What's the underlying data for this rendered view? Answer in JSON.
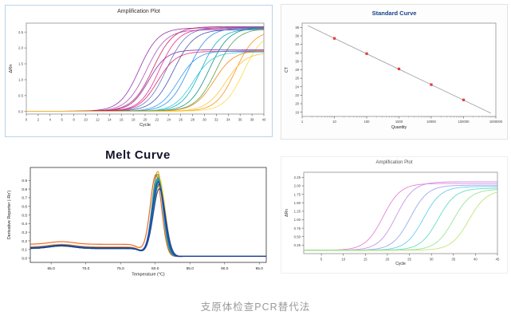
{
  "caption": "支原体检查PCR替代法",
  "chart_data": [
    {
      "id": "amp-main",
      "type": "line",
      "curve_model": "sigmoid",
      "title": "Amplification Plot",
      "xlabel": "Cycle",
      "ylabel": "ΔRn",
      "xlim": [
        0,
        40
      ],
      "ylim": [
        -0.08,
        2.78
      ],
      "grid": false,
      "legend": "none",
      "xticks": [
        0,
        2,
        4,
        6,
        8,
        10,
        12,
        14,
        16,
        18,
        20,
        22,
        24,
        26,
        28,
        30,
        32,
        34,
        36,
        38,
        40
      ],
      "yticks": [
        0.0,
        0.5,
        1.0,
        1.5,
        2.0,
        2.5
      ],
      "ytick_labels": [
        "0.0",
        "0.5",
        "1.0",
        "1.5",
        "2.0",
        "2.5"
      ],
      "series": [
        {
          "color": "#8e24aa",
          "plateau": 2.62,
          "ct": 19.0,
          "slope": 0.62,
          "baseline": 0.01
        },
        {
          "color": "#ab47bc",
          "plateau": 2.56,
          "ct": 20.2,
          "slope": 0.6,
          "baseline": 0.01
        },
        {
          "color": "#c2185b",
          "plateau": 2.66,
          "ct": 21.3,
          "slope": 0.58,
          "baseline": 0.01
        },
        {
          "color": "#e91e8c",
          "plateau": 2.6,
          "ct": 22.4,
          "slope": 0.62,
          "baseline": 0.01
        },
        {
          "color": "#5c6bc0",
          "plateau": 2.64,
          "ct": 23.6,
          "slope": 0.6,
          "baseline": 0.01
        },
        {
          "color": "#3949ab",
          "plateau": 2.57,
          "ct": 24.8,
          "slope": 0.58,
          "baseline": 0.01
        },
        {
          "color": "#1e88e5",
          "plateau": 2.62,
          "ct": 27.3,
          "slope": 0.6,
          "baseline": 0.01
        },
        {
          "color": "#00acc1",
          "plateau": 2.58,
          "ct": 29.4,
          "slope": 0.62,
          "baseline": 0.01
        },
        {
          "color": "#00897b",
          "plateau": 2.63,
          "ct": 30.8,
          "slope": 0.6,
          "baseline": 0.01
        },
        {
          "color": "#43a047",
          "plateau": 2.6,
          "ct": 32.0,
          "slope": 0.58,
          "baseline": 0.01
        },
        {
          "color": "#fb8c00",
          "plateau": 2.54,
          "ct": 35.2,
          "slope": 0.62,
          "baseline": 0.01
        },
        {
          "color": "#fdd835",
          "plateau": 2.5,
          "ct": 36.6,
          "slope": 0.62,
          "baseline": 0.01
        },
        {
          "color": "#7b1fa2",
          "plateau": 1.93,
          "ct": 20.6,
          "slope": 0.66,
          "baseline": 0.01
        },
        {
          "color": "#d81b60",
          "plateau": 1.88,
          "ct": 22.1,
          "slope": 0.64,
          "baseline": 0.01
        },
        {
          "color": "#2196f3",
          "plateau": 1.9,
          "ct": 25.6,
          "slope": 0.62,
          "baseline": 0.01
        },
        {
          "color": "#26c6da",
          "plateau": 1.86,
          "ct": 28.1,
          "slope": 0.62,
          "baseline": 0.01
        },
        {
          "color": "#f57c00",
          "plateau": 1.91,
          "ct": 31.6,
          "slope": 0.6,
          "baseline": 0.01
        },
        {
          "color": "#fbc02d",
          "plateau": 1.85,
          "ct": 33.6,
          "slope": 0.6,
          "baseline": 0.01
        }
      ]
    },
    {
      "id": "std-curve",
      "type": "scatter",
      "title": "Standard Curve",
      "xlabel": "Quantity",
      "ylabel": "CT",
      "xscale": "log",
      "xlim": [
        1,
        1000000
      ],
      "ylim": [
        17,
        39
      ],
      "grid": false,
      "legend": "none",
      "xticks": [
        1,
        10,
        100,
        1000,
        10000,
        100000,
        1000000
      ],
      "xtick_labels": [
        "1",
        "10",
        "100",
        "1000",
        "10000",
        "100000",
        "1000000"
      ],
      "yticks": [
        18,
        20,
        22,
        24,
        26,
        28,
        30,
        32,
        34,
        36,
        38
      ],
      "points": {
        "quantity": [
          10,
          100,
          1000,
          10000,
          100000
        ],
        "ct": [
          35.4,
          31.8,
          28.2,
          24.5,
          20.9
        ]
      },
      "fit_line": {
        "slope": -3.64,
        "intercept": 39.05,
        "x_start": 1.5,
        "x_end": 700000
      },
      "marker_color": "#e53935",
      "line_color": "#9e9e9e"
    },
    {
      "id": "melt-curve",
      "type": "line",
      "curve_model": "melt_peak",
      "title": "Melt Curve",
      "xlabel": "Temperature (°C)",
      "ylabel": "Derivative Reporter (-Rn')",
      "xlim": [
        62,
        96
      ],
      "ylim": [
        -0.05,
        1.05
      ],
      "grid": false,
      "legend": "none",
      "xticks": [
        65,
        70,
        75,
        80,
        85,
        90,
        95
      ],
      "xtick_labels": [
        "65.0",
        "70.0",
        "75.0",
        "80.0",
        "85.0",
        "90.0",
        "95.0"
      ],
      "yticks": [
        0.0,
        0.1,
        0.2,
        0.3,
        0.4,
        0.5,
        0.6,
        0.7,
        0.8,
        0.9
      ],
      "ytick_labels": [
        "0.0",
        "0.1",
        "0.2",
        "0.3",
        "0.4",
        "0.5",
        "0.6",
        "0.7",
        "0.8",
        "0.9"
      ],
      "series": [
        {
          "color": "#e65100",
          "peak": 0.96,
          "tm": 80.1,
          "width": 1.15,
          "base": 0.16
        },
        {
          "color": "#fb8c00",
          "peak": 1.0,
          "tm": 80.35,
          "width": 1.1,
          "base": 0.13
        },
        {
          "color": "#fdd835",
          "peak": 0.92,
          "tm": 80.6,
          "width": 1.2,
          "base": 0.12
        },
        {
          "color": "#c0ca33",
          "peak": 0.88,
          "tm": 80.5,
          "width": 1.25,
          "base": 0.11
        },
        {
          "color": "#7cb342",
          "peak": 0.93,
          "tm": 80.45,
          "width": 1.15,
          "base": 0.12
        },
        {
          "color": "#43a047",
          "peak": 0.97,
          "tm": 80.3,
          "width": 1.1,
          "base": 0.12
        },
        {
          "color": "#1b5e20",
          "peak": 0.85,
          "tm": 80.55,
          "width": 1.2,
          "base": 0.11
        },
        {
          "color": "#00897b",
          "peak": 0.9,
          "tm": 80.4,
          "width": 1.15,
          "base": 0.12
        },
        {
          "color": "#00acc1",
          "peak": 0.87,
          "tm": 80.5,
          "width": 1.2,
          "base": 0.11
        },
        {
          "color": "#1e88e5",
          "peak": 0.92,
          "tm": 80.35,
          "width": 1.15,
          "base": 0.12
        },
        {
          "color": "#1a35b0",
          "peak": 0.88,
          "tm": 80.45,
          "width": 1.2,
          "base": 0.12
        },
        {
          "color": "#283593",
          "peak": 0.8,
          "tm": 80.6,
          "width": 1.25,
          "base": 0.11
        }
      ]
    },
    {
      "id": "amp-small",
      "type": "line",
      "curve_model": "sigmoid",
      "title": "Amplification Plot",
      "xlabel": "Cycle",
      "ylabel": "ΔRn",
      "xlim": [
        1,
        45
      ],
      "ylim": [
        0,
        2.4
      ],
      "grid": false,
      "legend": "none",
      "xticks": [
        5,
        10,
        15,
        20,
        25,
        30,
        35,
        40,
        45
      ],
      "yticks": [
        0.25,
        0.5,
        0.75,
        1.0,
        1.25,
        1.5,
        1.75,
        2.0,
        2.25
      ],
      "ytick_labels": [
        "0.25",
        "0.50",
        "0.75",
        "1.00",
        "1.25",
        "1.50",
        "1.75",
        "2.00",
        "2.25"
      ],
      "series": [
        {
          "color": "#e573d2",
          "plateau": 1.97,
          "ct": 19.0,
          "slope": 0.5,
          "baseline": 0.1
        },
        {
          "color": "#c084e8",
          "plateau": 2.02,
          "ct": 22.0,
          "slope": 0.5,
          "baseline": 0.1
        },
        {
          "color": "#8f9df0",
          "plateau": 1.92,
          "ct": 25.2,
          "slope": 0.5,
          "baseline": 0.1
        },
        {
          "color": "#53c7ec",
          "plateau": 1.88,
          "ct": 28.2,
          "slope": 0.5,
          "baseline": 0.1
        },
        {
          "color": "#4fd8b8",
          "plateau": 1.83,
          "ct": 31.5,
          "slope": 0.5,
          "baseline": 0.1
        },
        {
          "color": "#8ee08a",
          "plateau": 1.8,
          "ct": 35.0,
          "slope": 0.5,
          "baseline": 0.1
        },
        {
          "color": "#b5e26b",
          "plateau": 1.78,
          "ct": 38.5,
          "slope": 0.5,
          "baseline": 0.1
        }
      ]
    }
  ]
}
